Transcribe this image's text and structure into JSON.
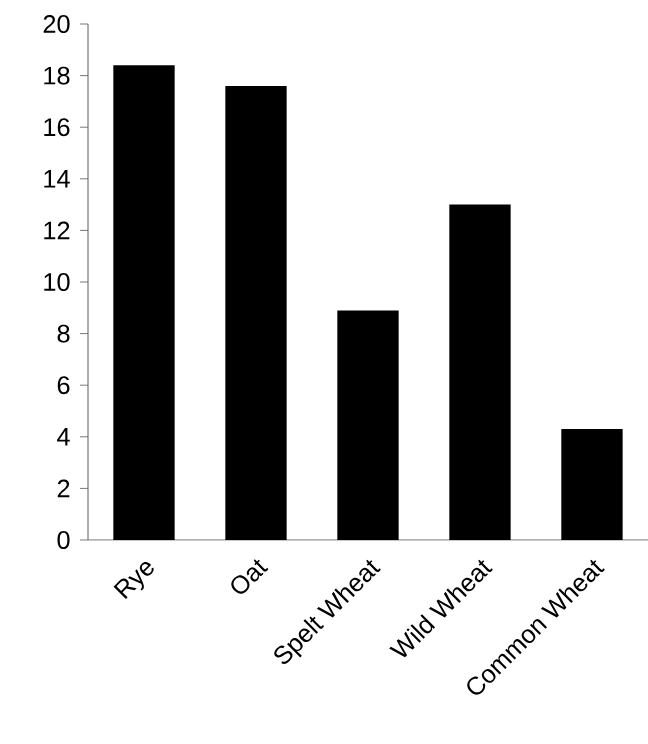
{
  "chart_data": {
    "type": "bar",
    "categories": [
      "Rye",
      "Oat",
      "Spelt Wheat",
      "Wild Wheat",
      "Common Wheat"
    ],
    "values": [
      18.4,
      17.6,
      8.9,
      13.0,
      4.3
    ],
    "color": "#000000",
    "ylim": [
      0,
      20
    ],
    "yticks": [
      0,
      2,
      4,
      6,
      8,
      10,
      12,
      14,
      16,
      18,
      20
    ]
  }
}
